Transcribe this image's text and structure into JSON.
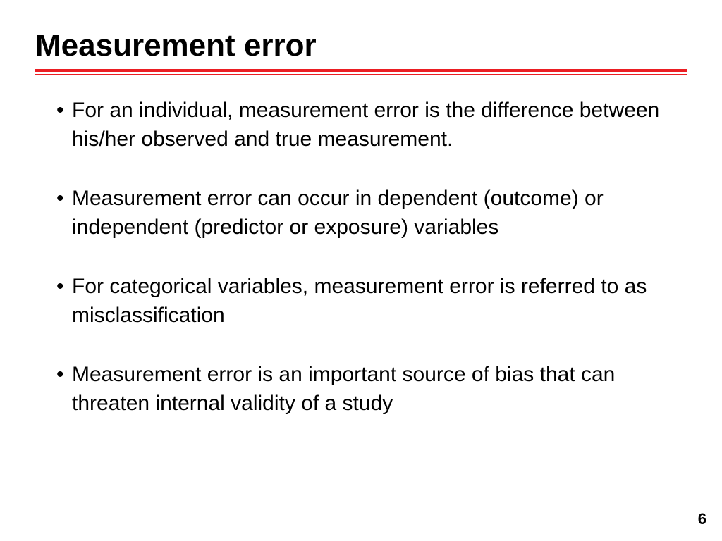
{
  "slide": {
    "title": "Measurement error",
    "bullets": [
      "For an individual, measurement error is the difference between his/her observed and true measurement.",
      "Measurement error can occur in dependent (outcome) or independent (predictor or exposure) variables",
      "For categorical variables, measurement error is referred to as misclassification",
      "Measurement error is an important source of bias that can threaten internal validity of a study"
    ],
    "page_number": "6"
  },
  "styling": {
    "title_color": "#000000",
    "title_fontsize": 44,
    "underline_color": "#eb1e23",
    "bullet_fontsize": 30,
    "bullet_color": "#000000",
    "background_color": "#ffffff",
    "page_number_fontsize": 22
  }
}
